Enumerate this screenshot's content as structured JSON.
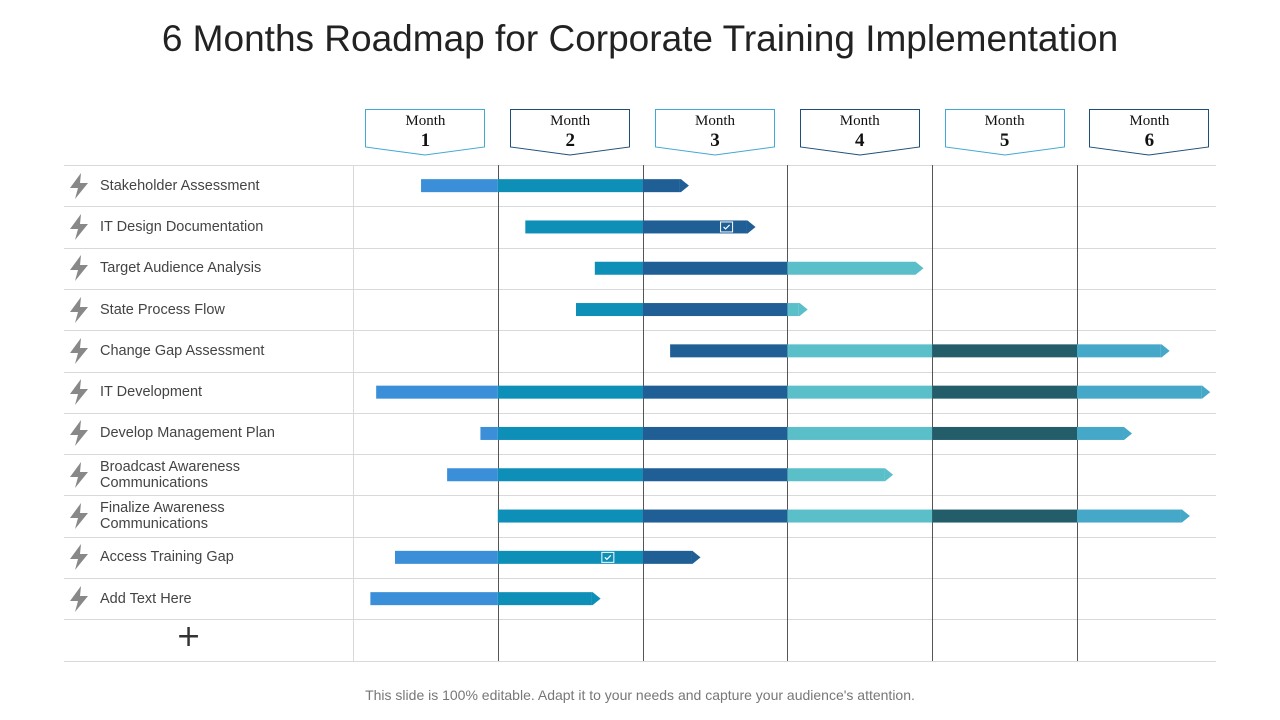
{
  "title": "6 Months Roadmap for Corporate Training Implementation",
  "footer": "This slide is 100% editable. Adapt it to your needs and capture your audience's attention.",
  "months": [
    {
      "word": "Month",
      "num": "1"
    },
    {
      "word": "Month",
      "num": "2"
    },
    {
      "word": "Month",
      "num": "3"
    },
    {
      "word": "Month",
      "num": "4"
    },
    {
      "word": "Month",
      "num": "5"
    },
    {
      "word": "Month",
      "num": "6"
    }
  ],
  "add_row_symbol": "+",
  "colors": {
    "pre": "#3a8fd8",
    "m2": "#0d8fb8",
    "m3": "#1f5f95",
    "m4": "#5bbfc9",
    "m5": "#245d6a",
    "m6": "#45a8c8",
    "month_box_dark": "#1e4f7a",
    "month_box_light": "#3fa8d4",
    "bolt": "#888888"
  },
  "chart_data": {
    "type": "gantt",
    "x_unit": "month",
    "xlim": [
      0.5,
      6.5
    ],
    "tasks": [
      {
        "name": "Stakeholder Assessment",
        "start": 0.97,
        "end": 2.82,
        "milestone": null
      },
      {
        "name": "IT Design Documentation",
        "start": 1.69,
        "end": 3.28,
        "milestone": 3.08
      },
      {
        "name": "Target Audience Analysis",
        "start": 2.17,
        "end": 4.44,
        "milestone": null
      },
      {
        "name": "State Process Flow",
        "start": 2.04,
        "end": 3.64,
        "milestone": null
      },
      {
        "name": "Change Gap Assessment",
        "start": 2.69,
        "end": 6.14,
        "milestone": null
      },
      {
        "name": "IT Development",
        "start": 0.66,
        "end": 6.42,
        "milestone": null
      },
      {
        "name": "Develop Management Plan",
        "start": 1.38,
        "end": 5.88,
        "milestone": null
      },
      {
        "name": "Broadcast Awareness Communications",
        "start": 1.15,
        "end": 4.23,
        "milestone": null
      },
      {
        "name": "Finalize Awareness Communications",
        "start": 1.5,
        "end": 6.28,
        "milestone": null
      },
      {
        "name": "Access Training Gap",
        "start": 0.79,
        "end": 2.9,
        "milestone": 2.26
      },
      {
        "name": "Add Text Here",
        "start": 0.62,
        "end": 2.21,
        "milestone": null
      }
    ]
  }
}
